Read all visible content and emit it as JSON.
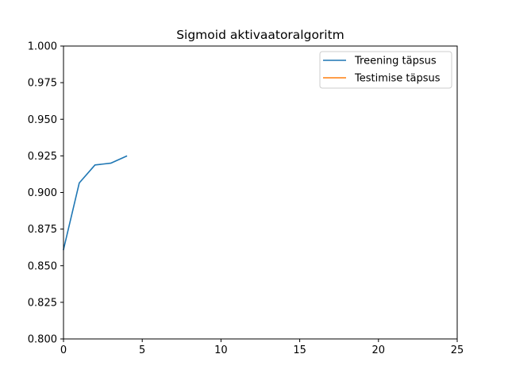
{
  "chart_data": {
    "type": "line",
    "title": "Sigmoid aktivaatoralgoritm",
    "xlabel": "",
    "ylabel": "",
    "xlim": [
      0,
      25
    ],
    "ylim": [
      0.8,
      1.0
    ],
    "x_ticks": [
      0,
      5,
      10,
      15,
      20,
      25
    ],
    "x_tick_labels": [
      "0",
      "5",
      "10",
      "15",
      "20",
      "25"
    ],
    "y_ticks": [
      0.8,
      0.825,
      0.85,
      0.875,
      0.9,
      0.925,
      0.95,
      0.975,
      1.0
    ],
    "y_tick_labels": [
      "0.800",
      "0.825",
      "0.850",
      "0.875",
      "0.900",
      "0.925",
      "0.950",
      "0.975",
      "1.000"
    ],
    "grid": false,
    "legend_position": "top-right",
    "series": [
      {
        "name": "Treening täpsus",
        "color": "#1f77b4",
        "x": [
          0,
          1,
          2,
          3,
          4
        ],
        "values": [
          0.861,
          0.9065,
          0.9188,
          0.92,
          0.9248
        ]
      },
      {
        "name": "Testimise täpsus",
        "color": "#ff7f0e",
        "x": [],
        "values": []
      }
    ]
  }
}
